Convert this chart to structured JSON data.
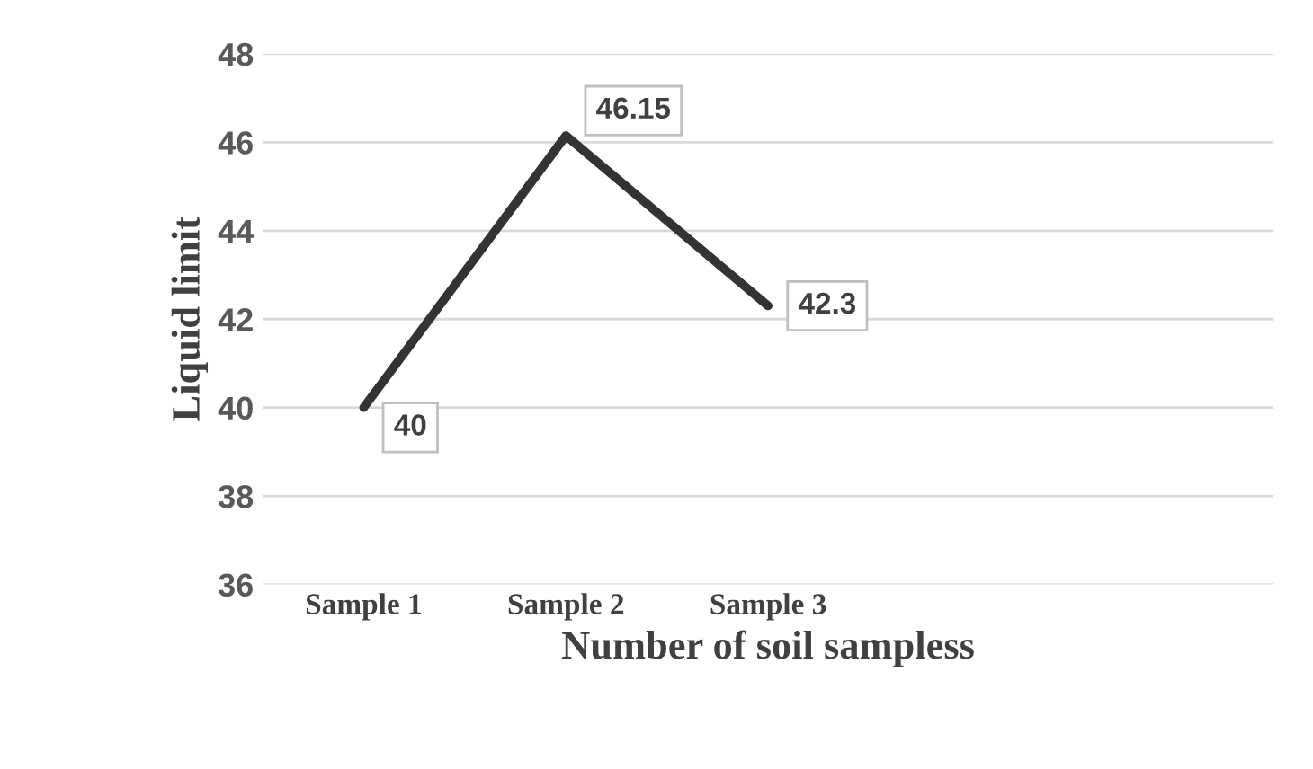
{
  "chart_data": {
    "type": "line",
    "xlabel": "Number of soil sampless",
    "ylabel": "Liquid limit",
    "categories": [
      "Sample 1",
      "Sample 2",
      "Sample 3",
      null,
      null
    ],
    "series": [
      {
        "color": "#333333",
        "values": [
          40,
          46.15,
          42.3,
          null,
          null
        ]
      }
    ],
    "ylim": [
      36,
      48
    ],
    "yticks": [
      36,
      38,
      40,
      42,
      44,
      46,
      48
    ],
    "grid": "y",
    "data_labels": true,
    "marker": "none",
    "line_style": "solid",
    "legend": false
  }
}
